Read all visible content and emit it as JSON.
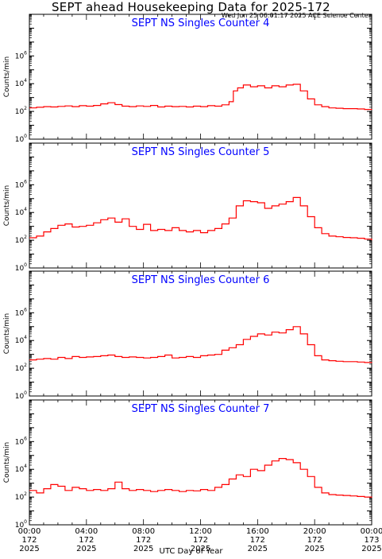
{
  "title": "SEPT ahead Housekeeping Data for 2025-172",
  "stamp": "Wed Jun 25 06:01:17 2025 ACE Science Center",
  "xlabel": "UTC Day of Year",
  "ylabel": "Counts/min",
  "colors": {
    "line": "#ff0000",
    "panel_title": "#0000ff",
    "axes": "#000000"
  },
  "x_ticks": [
    {
      "time": "00:00",
      "day": "172",
      "year": "2025"
    },
    {
      "time": "04:00",
      "day": "172",
      "year": "2025"
    },
    {
      "time": "08:00",
      "day": "172",
      "year": "2025"
    },
    {
      "time": "12:00",
      "day": "172",
      "year": "2025"
    },
    {
      "time": "16:00",
      "day": "172",
      "year": "2025"
    },
    {
      "time": "20:00",
      "day": "172",
      "year": "2025"
    },
    {
      "time": "00:00",
      "day": "173",
      "year": "2025"
    }
  ],
  "chart_data": [
    {
      "type": "line",
      "title": "SEPT NS Singles Counter 4",
      "ylabel": "Counts/min",
      "yscale": "log",
      "ylim": [
        1,
        1000000000
      ],
      "y_tick_labels": [
        "10^0",
        "10^2",
        "10^4",
        "10^6"
      ],
      "xlim": [
        0,
        24
      ],
      "x_unit": "hours UTC",
      "series": [
        {
          "x": [
            0,
            0.5,
            1,
            1.5,
            2,
            2.5,
            3,
            3.5,
            4,
            4.5,
            5,
            5.5,
            6,
            6.5,
            7,
            7.5,
            8,
            8.5,
            9,
            9.5,
            10,
            10.5,
            11,
            11.5,
            12,
            12.5,
            13,
            13.5,
            14,
            14.3,
            14.6,
            15,
            15.5,
            16,
            16.5,
            17,
            17.5,
            18,
            18.5,
            19,
            19.5,
            20,
            20.5,
            21,
            21.5,
            22,
            22.5,
            23,
            23.5,
            24
          ],
          "values": [
            180,
            200,
            220,
            210,
            230,
            250,
            220,
            260,
            240,
            270,
            350,
            420,
            310,
            240,
            220,
            250,
            230,
            270,
            210,
            240,
            220,
            230,
            210,
            240,
            220,
            260,
            240,
            300,
            500,
            3000,
            5000,
            8000,
            6000,
            7000,
            5000,
            7000,
            6000,
            8000,
            9000,
            3000,
            800,
            300,
            220,
            180,
            170,
            160,
            160,
            150,
            140,
            130
          ]
        }
      ]
    },
    {
      "type": "line",
      "title": "SEPT NS Singles Counter 5",
      "ylabel": "Counts/min",
      "yscale": "log",
      "ylim": [
        1,
        1000000000
      ],
      "y_tick_labels": [
        "10^0",
        "10^2",
        "10^4",
        "10^6"
      ],
      "xlim": [
        0,
        24
      ],
      "x_unit": "hours UTC",
      "series": [
        {
          "x": [
            0,
            0.5,
            1,
            1.5,
            2,
            2.5,
            3,
            3.5,
            4,
            4.5,
            5,
            5.5,
            6,
            6.5,
            7,
            7.5,
            8,
            8.5,
            9,
            9.5,
            10,
            10.5,
            11,
            11.5,
            12,
            12.5,
            13,
            13.5,
            14,
            14.5,
            15,
            15.5,
            16,
            16.5,
            17,
            17.5,
            18,
            18.5,
            19,
            19.5,
            20,
            20.5,
            21,
            21.5,
            22,
            22.5,
            23,
            23.5,
            24
          ],
          "values": [
            150,
            200,
            400,
            700,
            1200,
            1500,
            900,
            1000,
            1200,
            1800,
            3000,
            4000,
            2000,
            3500,
            1000,
            600,
            1400,
            500,
            600,
            500,
            800,
            500,
            400,
            500,
            350,
            500,
            700,
            1500,
            4000,
            30000,
            70000,
            60000,
            50000,
            20000,
            30000,
            40000,
            60000,
            120000,
            30000,
            5000,
            800,
            300,
            200,
            180,
            160,
            150,
            140,
            120,
            100
          ]
        }
      ]
    },
    {
      "type": "line",
      "title": "SEPT NS Singles Counter 6",
      "ylabel": "Counts/min",
      "yscale": "log",
      "ylim": [
        1,
        1000000000
      ],
      "y_tick_labels": [
        "10^0",
        "10^2",
        "10^4",
        "10^6"
      ],
      "xlim": [
        0,
        24
      ],
      "x_unit": "hours UTC",
      "series": [
        {
          "x": [
            0,
            0.5,
            1,
            1.5,
            2,
            2.5,
            3,
            3.5,
            4,
            4.5,
            5,
            5.5,
            6,
            6.5,
            7,
            7.5,
            8,
            8.5,
            9,
            9.5,
            10,
            10.5,
            11,
            11.5,
            12,
            12.5,
            13,
            13.5,
            14,
            14.5,
            15,
            15.5,
            16,
            16.5,
            17,
            17.5,
            18,
            18.5,
            19,
            19.5,
            20,
            20.5,
            21,
            21.5,
            22,
            22.5,
            23,
            23.5,
            24
          ],
          "values": [
            400,
            450,
            500,
            450,
            600,
            500,
            700,
            600,
            650,
            700,
            800,
            900,
            700,
            600,
            650,
            600,
            550,
            600,
            700,
            900,
            550,
            600,
            700,
            600,
            800,
            900,
            1000,
            2000,
            3000,
            5000,
            12000,
            20000,
            30000,
            25000,
            40000,
            35000,
            60000,
            100000,
            30000,
            5000,
            800,
            400,
            350,
            320,
            300,
            300,
            280,
            260,
            240
          ]
        }
      ]
    },
    {
      "type": "line",
      "title": "SEPT NS Singles Counter 7",
      "ylabel": "Counts/min",
      "yscale": "log",
      "ylim": [
        1,
        1000000000
      ],
      "y_tick_labels": [
        "10^0",
        "10^2",
        "10^4",
        "10^6"
      ],
      "xlim": [
        0,
        24
      ],
      "x_unit": "hours UTC",
      "series": [
        {
          "x": [
            0,
            0.5,
            1,
            1.5,
            2,
            2.5,
            3,
            3.5,
            4,
            4.5,
            5,
            5.5,
            6,
            6.5,
            7,
            7.5,
            8,
            8.5,
            9,
            9.5,
            10,
            10.5,
            11,
            11.5,
            12,
            12.5,
            13,
            13.5,
            14,
            14.5,
            15,
            15.5,
            16,
            16.5,
            17,
            17.5,
            18,
            18.5,
            19,
            19.5,
            20,
            20.5,
            21,
            21.5,
            22,
            22.5,
            23,
            23.5,
            24
          ],
          "values": [
            300,
            200,
            400,
            800,
            600,
            300,
            500,
            400,
            300,
            350,
            300,
            400,
            1200,
            400,
            300,
            350,
            300,
            250,
            300,
            350,
            300,
            250,
            300,
            280,
            350,
            300,
            500,
            800,
            2000,
            4000,
            3000,
            10000,
            8000,
            20000,
            40000,
            60000,
            50000,
            30000,
            10000,
            3000,
            500,
            200,
            150,
            140,
            130,
            120,
            110,
            100,
            90
          ]
        }
      ]
    }
  ]
}
